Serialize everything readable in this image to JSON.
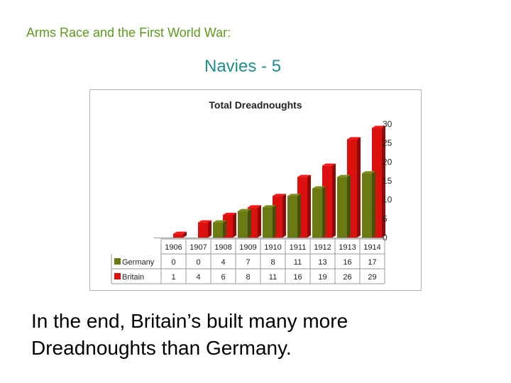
{
  "slide": {
    "heading": "Arms Race and the First World War:",
    "subheading": "Navies - 5",
    "body_lines": [
      "In the end, Britain’s built many more",
      "Dreadnoughts than Germany."
    ]
  },
  "colors": {
    "heading": "#5c9a1e",
    "subheading": "#1e8f8a",
    "germany": "#6b7a12",
    "britain": "#dd1010"
  },
  "chart_data": {
    "type": "bar",
    "title": "Total Dreadnoughts",
    "categories": [
      "1906",
      "1907",
      "1908",
      "1909",
      "1910",
      "1911",
      "1912",
      "1913",
      "1914"
    ],
    "series": [
      {
        "name": "Germany",
        "values": [
          0,
          0,
          4,
          7,
          8,
          11,
          13,
          16,
          17
        ]
      },
      {
        "name": "Britain",
        "values": [
          1,
          4,
          6,
          8,
          11,
          16,
          19,
          26,
          29
        ]
      }
    ],
    "y_ticks": [
      "30",
      "25",
      "20",
      "15",
      "10",
      "5",
      "0"
    ],
    "ylim": [
      0,
      30
    ],
    "yaxis_position": "right",
    "grid": false,
    "legend": "data-table-left",
    "style": "3d-columns"
  }
}
